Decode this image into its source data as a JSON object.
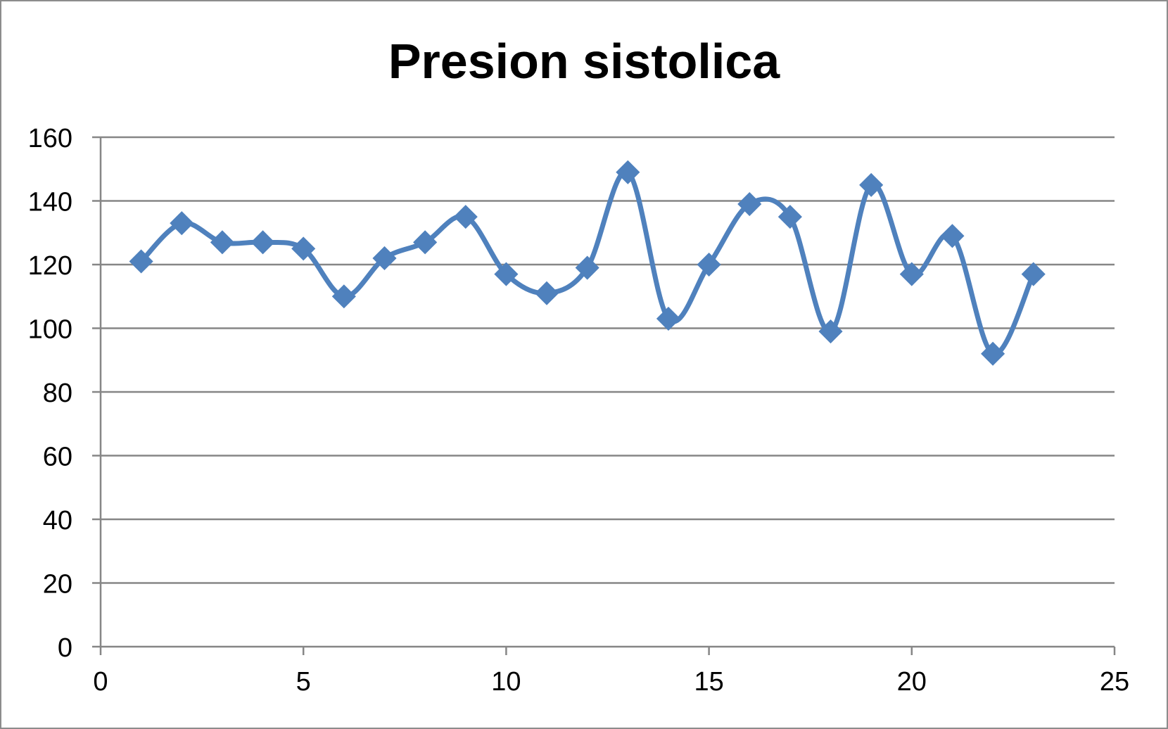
{
  "chart_data": {
    "type": "scatter",
    "title": "Presion sistolica",
    "xlabel": "",
    "ylabel": "",
    "xlim": [
      0,
      25
    ],
    "ylim": [
      0,
      160
    ],
    "x_ticks": [
      0,
      5,
      10,
      15,
      20,
      25
    ],
    "y_ticks": [
      0,
      20,
      40,
      60,
      80,
      100,
      120,
      140,
      160
    ],
    "grid": true,
    "legend": "none",
    "line_style": "smoothed",
    "marker": "diamond",
    "series": [
      {
        "color": "#4f81bd",
        "x": [
          1,
          2,
          3,
          4,
          5,
          6,
          7,
          8,
          9,
          10,
          11,
          12,
          13,
          14,
          15,
          16,
          17,
          18,
          19,
          20,
          21,
          22,
          23
        ],
        "y": [
          121,
          133,
          127,
          127,
          125,
          110,
          122,
          127,
          135,
          117,
          111,
          119,
          149,
          103,
          120,
          139,
          135,
          99,
          145,
          117,
          129,
          92,
          117
        ]
      }
    ]
  },
  "colors": {
    "series": "#4f81bd",
    "gridline": "#868686",
    "axis": "#868686",
    "border": "#8c8c8c"
  }
}
